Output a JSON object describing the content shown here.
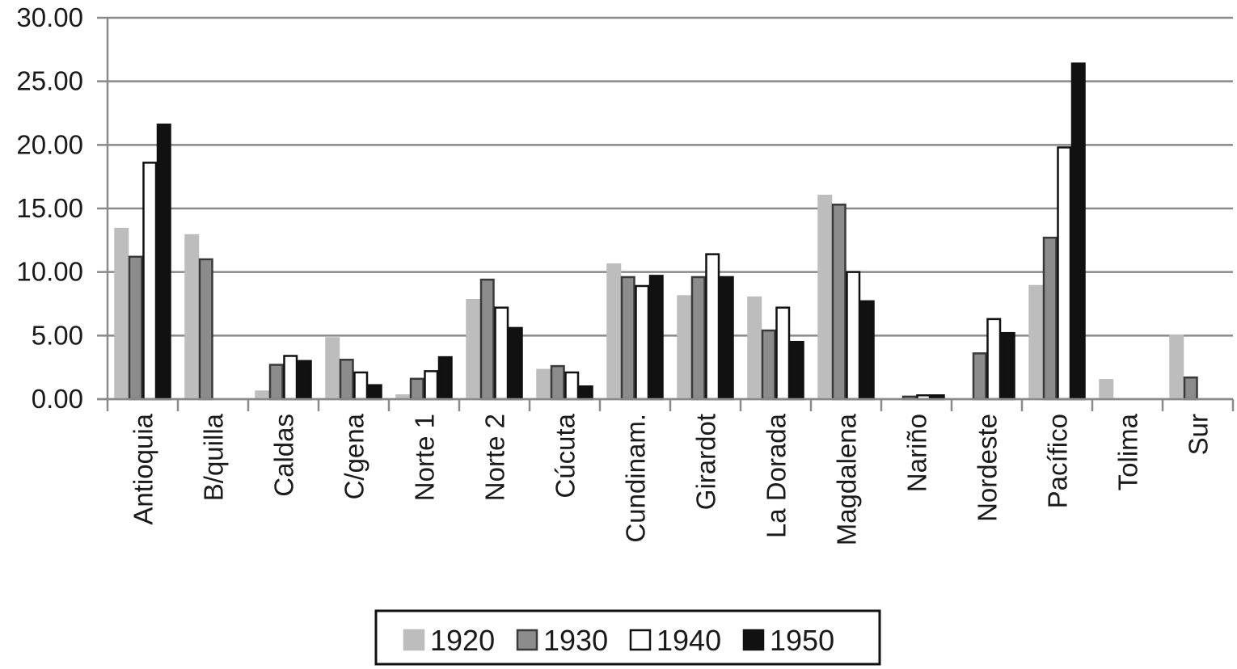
{
  "chart_data": {
    "type": "bar",
    "title": "",
    "xlabel": "",
    "ylabel": "",
    "ylim": [
      0,
      30
    ],
    "yticks": [
      "0.00",
      "5.00",
      "10.00",
      "15.00",
      "20.00",
      "25.00",
      "30.00"
    ],
    "grid": true,
    "legend_position": "bottom",
    "categories": [
      "Antioquia",
      "B/quilla",
      "Caldas",
      "C/gena",
      "Norte 1",
      "Norte 2",
      "Cúcuta",
      "Cundinam.",
      "Girardot",
      "La Dorada",
      "Magdalena",
      "Nariño",
      "Nordeste",
      "Pacífico",
      "Tolima",
      "Sur"
    ],
    "series": [
      {
        "name": "1920",
        "color": "#bdbdbd",
        "stroke": "#bdbdbd",
        "values": [
          13.4,
          12.9,
          0.6,
          4.8,
          0.3,
          7.8,
          2.3,
          10.6,
          8.1,
          8.0,
          16.0,
          0.0,
          0.0,
          8.9,
          1.5,
          5.0
        ]
      },
      {
        "name": "1930",
        "color": "#8c8c8c",
        "stroke": "#3a3a3a",
        "values": [
          11.2,
          11.0,
          2.7,
          3.1,
          1.6,
          9.4,
          2.6,
          9.6,
          9.6,
          5.4,
          15.3,
          0.2,
          3.6,
          12.7,
          0.0,
          1.7
        ]
      },
      {
        "name": "1940",
        "color": "#ffffff",
        "stroke": "#111111",
        "values": [
          18.6,
          0.0,
          3.4,
          2.1,
          2.2,
          7.2,
          2.1,
          8.9,
          11.4,
          7.2,
          10.0,
          0.3,
          6.3,
          19.8,
          0.0,
          0.0
        ]
      },
      {
        "name": "1950",
        "color": "#111111",
        "stroke": "#111111",
        "values": [
          21.6,
          0.0,
          3.0,
          1.1,
          3.3,
          5.6,
          1.0,
          9.7,
          9.6,
          4.5,
          7.7,
          0.3,
          5.2,
          26.4,
          0.0,
          0.0
        ]
      }
    ]
  }
}
